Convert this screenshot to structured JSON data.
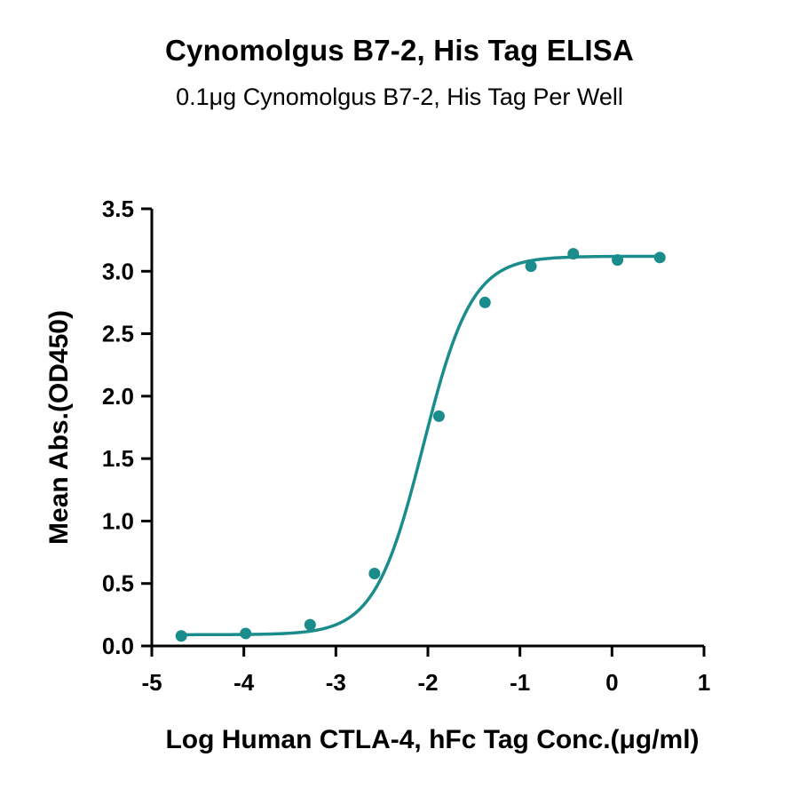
{
  "chart_data": {
    "type": "scatter",
    "title": "Cynomolgus B7-2, His Tag ELISA",
    "subtitle": "0.1μg Cynomolgus B7-2, His Tag Per Well",
    "xlabel": "Log Human CTLA-4, hFc Tag Conc.(μg/ml)",
    "ylabel": "Mean Abs.(OD450)",
    "xlim": [
      -5,
      1
    ],
    "ylim": [
      0,
      3.5
    ],
    "xticks": [
      "-5",
      "-4",
      "-3",
      "-2",
      "-1",
      "0",
      "1"
    ],
    "yticks": [
      "0.0",
      "0.5",
      "1.0",
      "1.5",
      "2.0",
      "2.5",
      "3.0",
      "3.5"
    ],
    "grid": false,
    "color": "#1a8c8c",
    "series": [
      {
        "x": [
          -4.68,
          -3.98,
          -3.28,
          -2.58,
          -1.88,
          -1.38,
          -0.88,
          -0.42,
          0.06,
          0.52
        ],
        "y": [
          0.08,
          0.1,
          0.17,
          0.58,
          1.84,
          2.75,
          3.04,
          3.14,
          3.09,
          3.11
        ]
      }
    ],
    "fit_curve": {
      "type": "4PL",
      "bottom": 0.09,
      "top": 3.12,
      "log_ec50": -2.05,
      "hill_slope": 1.65
    }
  }
}
